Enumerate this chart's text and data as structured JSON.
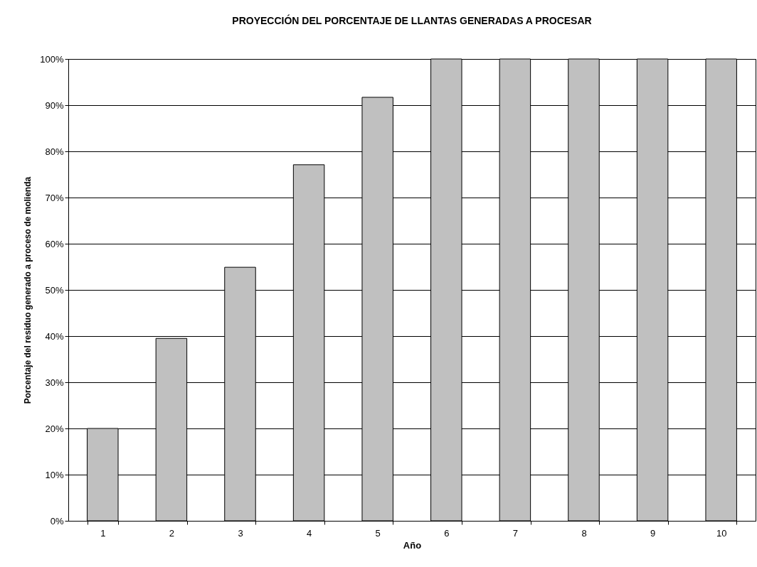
{
  "chart_data": {
    "type": "bar",
    "title": "PROYECCIÓN DEL PORCENTAJE DE LLANTAS GENERADAS A PROCESAR",
    "xlabel": "Año",
    "ylabel": "Porcentaje del residuo generado a proceso de molienda",
    "categories": [
      "1",
      "2",
      "3",
      "4",
      "5",
      "6",
      "7",
      "8",
      "9",
      "10"
    ],
    "values": [
      20,
      39.5,
      54.9,
      77.1,
      91.7,
      100,
      100,
      100,
      100,
      100
    ],
    "color": "#c0c0c0",
    "ylim": [
      0,
      100
    ],
    "yticks": [
      {
        "value": 0,
        "label": "0%"
      },
      {
        "value": 10,
        "label": "10%"
      },
      {
        "value": 20,
        "label": "20%"
      },
      {
        "value": 30,
        "label": "30%"
      },
      {
        "value": 40,
        "label": "40%"
      },
      {
        "value": 50,
        "label": "50%"
      },
      {
        "value": 60,
        "label": "60%"
      },
      {
        "value": 70,
        "label": "70%"
      },
      {
        "value": 80,
        "label": "80%"
      },
      {
        "value": 90,
        "label": "90%"
      },
      {
        "value": 100,
        "label": "100%"
      }
    ],
    "grid": "y"
  }
}
